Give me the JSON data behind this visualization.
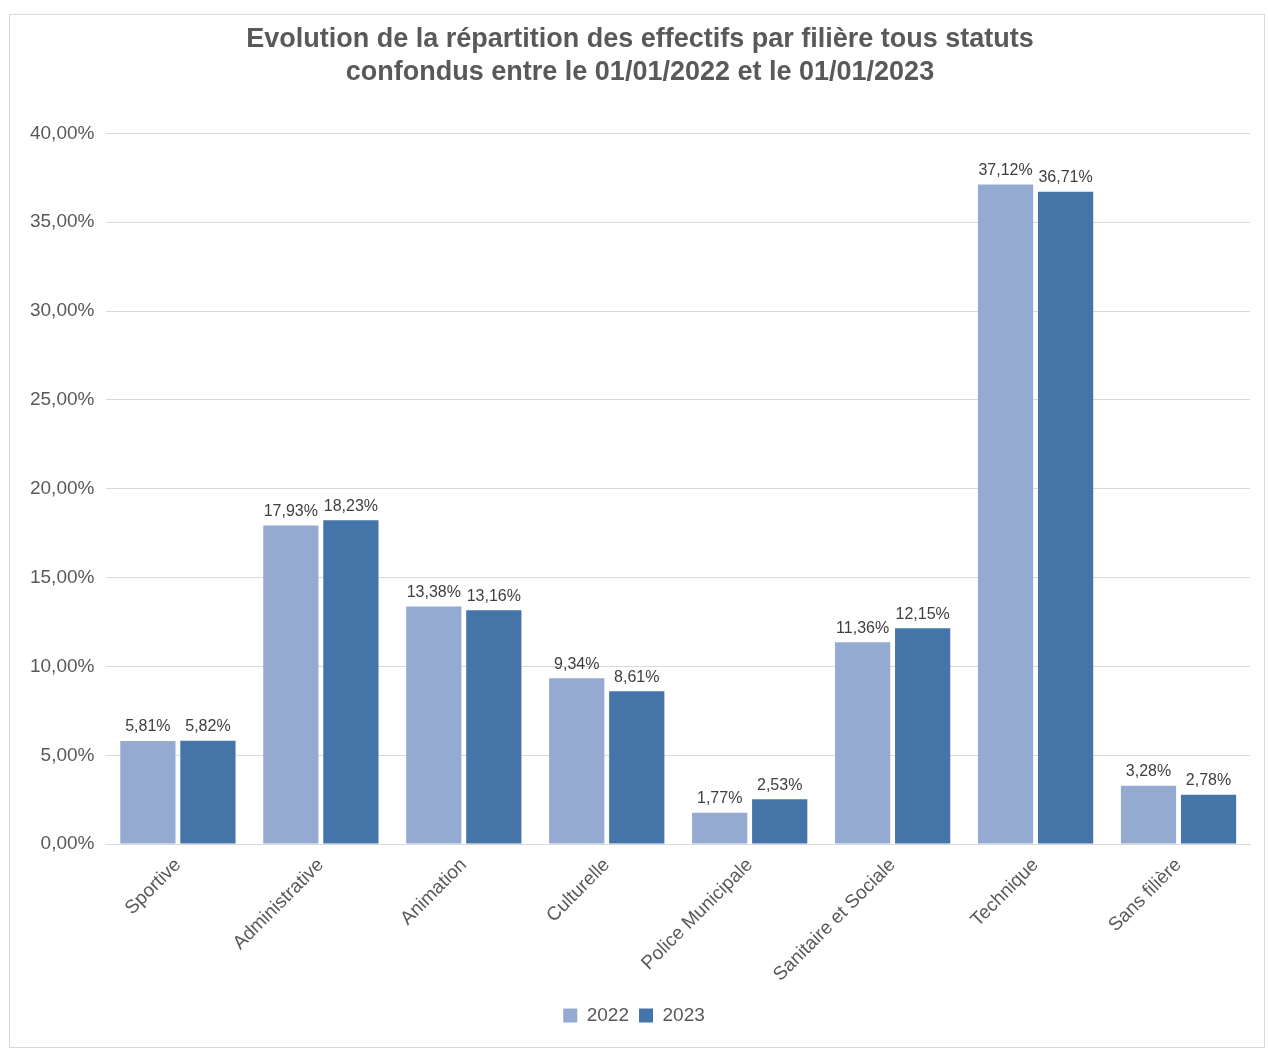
{
  "chart_data": {
    "type": "bar",
    "title": "Evolution de la répartition des effectifs par filière tous statuts confondus entre le 01/01/2022 et le 01/01/2023",
    "categories": [
      "Sportive",
      "Administrative",
      "Animation",
      "Culturelle",
      "Police Municipale",
      "Sanitaire et Sociale",
      "Technique",
      "Sans filière"
    ],
    "series": [
      {
        "name": "2022",
        "color": "#95aad1",
        "values": [
          5.81,
          17.93,
          13.38,
          9.34,
          1.77,
          11.36,
          37.12,
          3.28
        ],
        "value_labels": [
          "5,81%",
          "17,93%",
          "13,38%",
          "9,34%",
          "1,77%",
          "11,36%",
          "37,12%",
          "3,28%"
        ]
      },
      {
        "name": "2023",
        "color": "#4574a9",
        "values": [
          5.82,
          18.23,
          13.16,
          8.61,
          2.53,
          12.15,
          36.71,
          2.78
        ],
        "value_labels": [
          "5,82%",
          "18,23%",
          "13,16%",
          "8,61%",
          "2,53%",
          "12,15%",
          "36,71%",
          "2,78%"
        ]
      }
    ],
    "ylim": [
      0,
      40
    ],
    "yticks": [
      {
        "value": 0,
        "label": "0,00%"
      },
      {
        "value": 5,
        "label": "5,00%"
      },
      {
        "value": 10,
        "label": "10,00%"
      },
      {
        "value": 15,
        "label": "15,00%"
      },
      {
        "value": 20,
        "label": "20,00%"
      },
      {
        "value": 25,
        "label": "25,00%"
      },
      {
        "value": 30,
        "label": "30,00%"
      },
      {
        "value": 35,
        "label": "35,00%"
      },
      {
        "value": 40,
        "label": "40,00%"
      }
    ],
    "grid": "y",
    "legend": "bottom"
  }
}
